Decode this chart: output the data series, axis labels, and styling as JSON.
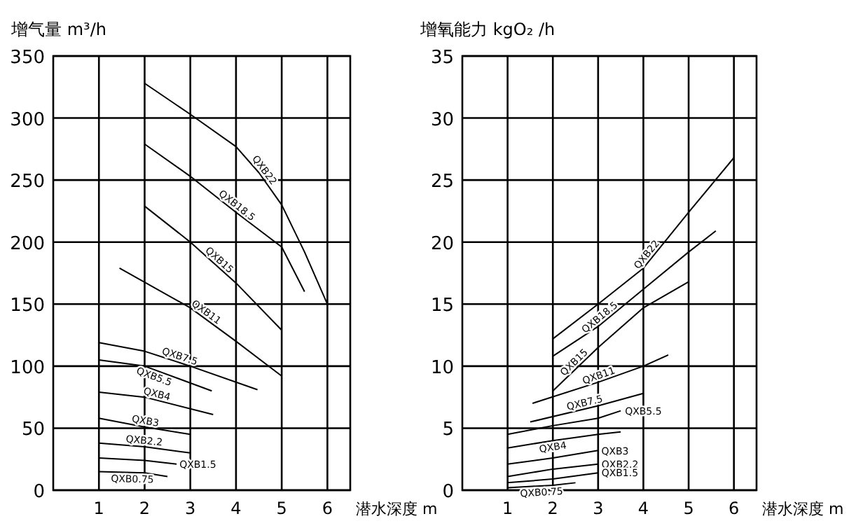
{
  "chart_data": [
    {
      "type": "line",
      "ylabel": "增气量 m³/h",
      "xlabel": "潜水深度 m",
      "xlim": [
        0,
        6.5
      ],
      "ylim": [
        0,
        350
      ],
      "xticks": [
        1,
        2,
        3,
        4,
        5,
        6
      ],
      "yticks": [
        0,
        50,
        100,
        150,
        200,
        250,
        300,
        350
      ],
      "grid": true,
      "series": [
        {
          "name": "QXB22",
          "color": "#000000",
          "x": [
            2,
            3,
            4,
            4.5,
            5,
            5.5,
            6
          ],
          "values": [
            328,
            303,
            277,
            256,
            230,
            192,
            150
          ]
        },
        {
          "name": "QXB18.5",
          "color": "#000000",
          "x": [
            2,
            3,
            4,
            5,
            5.5
          ],
          "values": [
            279,
            253,
            224,
            196,
            160
          ]
        },
        {
          "name": "QXB15",
          "color": "#000000",
          "x": [
            2,
            3,
            4,
            5
          ],
          "values": [
            229,
            200,
            167,
            129
          ]
        },
        {
          "name": "QXB11",
          "color": "#000000",
          "x": [
            1.45,
            3,
            4,
            5
          ],
          "values": [
            179,
            147,
            120,
            92
          ]
        },
        {
          "name": "QXB7.5",
          "color": "#000000",
          "x": [
            1,
            2,
            3,
            4.47
          ],
          "values": [
            119,
            112,
            100,
            81
          ]
        },
        {
          "name": "QXB5.5",
          "color": "#000000",
          "x": [
            1,
            2,
            3.47
          ],
          "values": [
            105,
            100,
            80
          ]
        },
        {
          "name": "QXB4",
          "color": "#000000",
          "x": [
            1,
            2,
            3.5
          ],
          "values": [
            79,
            75,
            61
          ]
        },
        {
          "name": "QXB3",
          "color": "#000000",
          "x": [
            1,
            2,
            3
          ],
          "values": [
            58,
            51,
            45
          ]
        },
        {
          "name": "QXB2.2",
          "color": "#000000",
          "x": [
            1,
            2,
            3
          ],
          "values": [
            38,
            35,
            30
          ]
        },
        {
          "name": "QXB1.5",
          "color": "#000000",
          "x": [
            1,
            2,
            2.7
          ],
          "values": [
            26,
            24,
            21
          ]
        },
        {
          "name": "QXB0.75",
          "color": "#000000",
          "x": [
            1,
            2,
            2.5
          ],
          "values": [
            15,
            14,
            11
          ]
        }
      ]
    },
    {
      "type": "line",
      "ylabel": "增氧能力 kgO₂ /h",
      "xlabel": "潜水深度 m",
      "xlim": [
        0,
        6.5
      ],
      "ylim": [
        0,
        35
      ],
      "xticks": [
        1,
        2,
        3,
        4,
        5,
        6
      ],
      "yticks": [
        0,
        5,
        10,
        15,
        20,
        25,
        30,
        35
      ],
      "grid": true,
      "series": [
        {
          "name": "QXB22",
          "color": "#000000",
          "x": [
            2,
            3,
            4,
            5,
            6
          ],
          "values": [
            12.2,
            15,
            17.9,
            22.4,
            26.8
          ]
        },
        {
          "name": "QXB18.5",
          "color": "#000000",
          "x": [
            2,
            3,
            4,
            5,
            5.6
          ],
          "values": [
            10.8,
            13.2,
            16.2,
            19.2,
            20.9
          ]
        },
        {
          "name": "QXB15",
          "color": "#000000",
          "x": [
            2,
            3,
            4,
            5
          ],
          "values": [
            8,
            11.5,
            14.7,
            16.8
          ]
        },
        {
          "name": "QXB11",
          "color": "#000000",
          "x": [
            1.55,
            3,
            4,
            4.55
          ],
          "values": [
            7,
            8.7,
            10,
            10.9
          ]
        },
        {
          "name": "QXB7.5",
          "color": "#000000",
          "x": [
            1.5,
            3,
            4
          ],
          "values": [
            5.5,
            6.8,
            7.8
          ]
        },
        {
          "name": "QXB5.5",
          "color": "#000000",
          "x": [
            1,
            2,
            3,
            3.5
          ],
          "values": [
            4.5,
            5.2,
            5.8,
            6.4
          ]
        },
        {
          "name": "QXB4",
          "color": "#000000",
          "x": [
            1,
            2,
            3,
            3.5
          ],
          "values": [
            3.4,
            4,
            4.5,
            4.7
          ]
        },
        {
          "name": "QXB3",
          "color": "#000000",
          "x": [
            1,
            2,
            3
          ],
          "values": [
            2.1,
            2.6,
            3.2
          ]
        },
        {
          "name": "QXB2.2",
          "color": "#000000",
          "x": [
            1,
            2,
            3
          ],
          "values": [
            1.1,
            1.7,
            2.1
          ]
        },
        {
          "name": "QXB1.5",
          "color": "#000000",
          "x": [
            1,
            2,
            3
          ],
          "values": [
            0.6,
            0.9,
            1.4
          ]
        },
        {
          "name": "QXB0.75",
          "color": "#000000",
          "x": [
            1,
            2,
            2.5
          ],
          "values": [
            0.2,
            0.4,
            0.6
          ]
        }
      ]
    }
  ]
}
